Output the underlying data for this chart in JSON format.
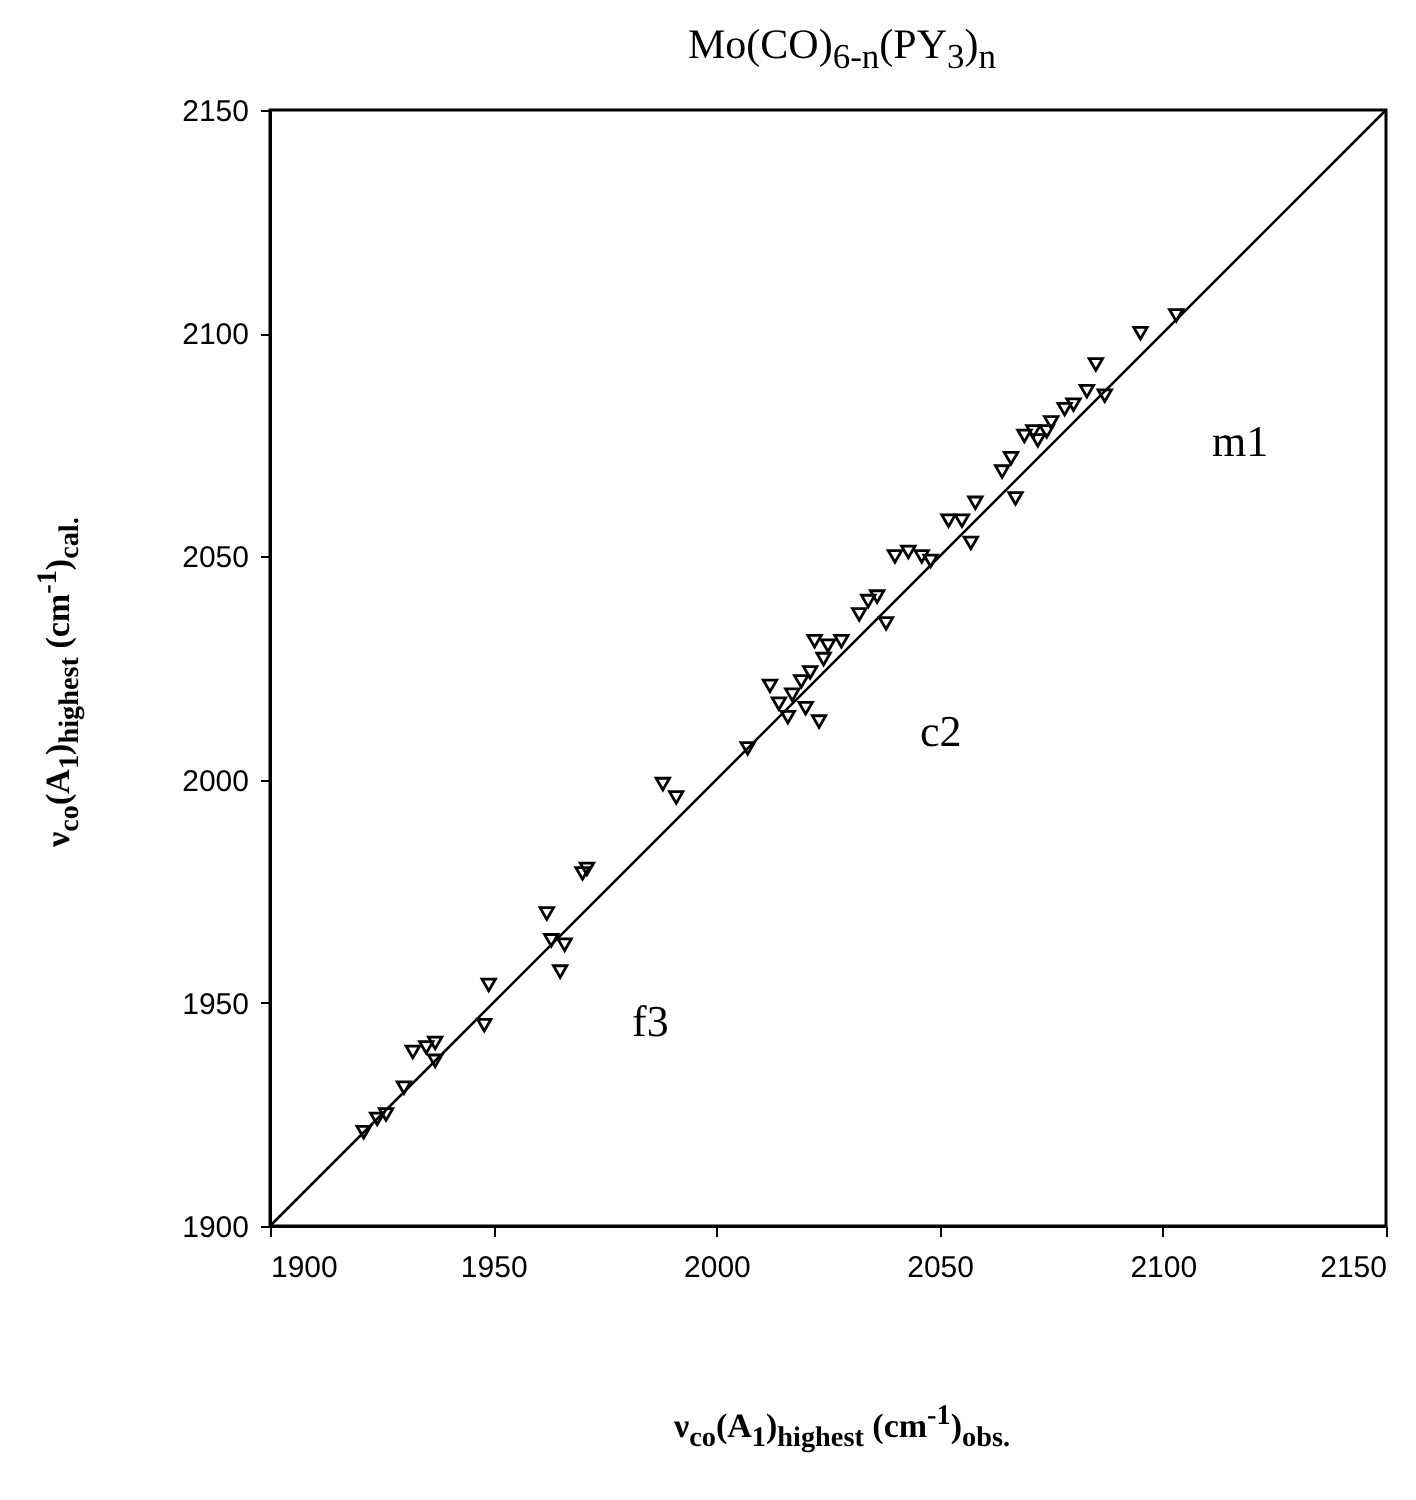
{
  "chart_data": {
    "type": "scatter",
    "title": "Mo(CO)$_{6-n}$(PY$_{3}$)$_{n}$",
    "xlabel": "ν$_{co}$(A$_{1}$)$_{highest}$ (cm$^{-1}$)$_{obs.}$",
    "ylabel": "ν$_{co}$(A$_{1}$)$_{highest}$ (cm$^{-1}$)$_{cal.}$",
    "xlim": [
      1900,
      2150
    ],
    "ylim": [
      1900,
      2150
    ],
    "xticks": [
      1900,
      1950,
      2000,
      2050,
      2100,
      2150
    ],
    "yticks": [
      1900,
      1950,
      2000,
      2050,
      2100,
      2150
    ],
    "grid": false,
    "series": [
      {
        "marker": "triangle",
        "color": "#000000",
        "x": [
          1921,
          1924,
          1926,
          1930,
          1932,
          1935,
          1937,
          1937,
          1948,
          1949,
          1962,
          1963,
          1966,
          1965,
          1970,
          1971,
          1988,
          1991,
          2007,
          2012,
          2014,
          2016,
          2017,
          2019,
          2020,
          2021,
          2022,
          2023,
          2024,
          2025,
          2028,
          2032,
          2034,
          2036,
          2038,
          2040,
          2043,
          2046,
          2048,
          2052,
          2055,
          2057,
          2058,
          2064,
          2066,
          2067,
          2069,
          2071,
          2072,
          2074,
          2075,
          2078,
          2080,
          2083,
          2085,
          2087,
          2095,
          2103
        ],
        "values": [
          1921,
          1924,
          1925,
          1931,
          1939,
          1940,
          1937,
          1941,
          1945,
          1954,
          1970,
          1964,
          1963,
          1957,
          1979,
          1980,
          1999,
          1996,
          2007,
          2021,
          2017,
          2014,
          2019,
          2022,
          2016,
          2024,
          2031,
          2013,
          2027,
          2030,
          2031,
          2037,
          2040,
          2041,
          2035,
          2050,
          2051,
          2050,
          2049,
          2058,
          2058,
          2053,
          2062,
          2069,
          2072,
          2063,
          2077,
          2078,
          2076,
          2078,
          2080,
          2083,
          2084,
          2087,
          2093,
          2086,
          2100,
          2104
        ]
      },
      {
        "type": "line",
        "color": "#000000",
        "x": [
          1900,
          2150
        ],
        "values": [
          1900,
          2150
        ]
      }
    ],
    "annotations": [
      "m1",
      "c2",
      "f3"
    ]
  }
}
